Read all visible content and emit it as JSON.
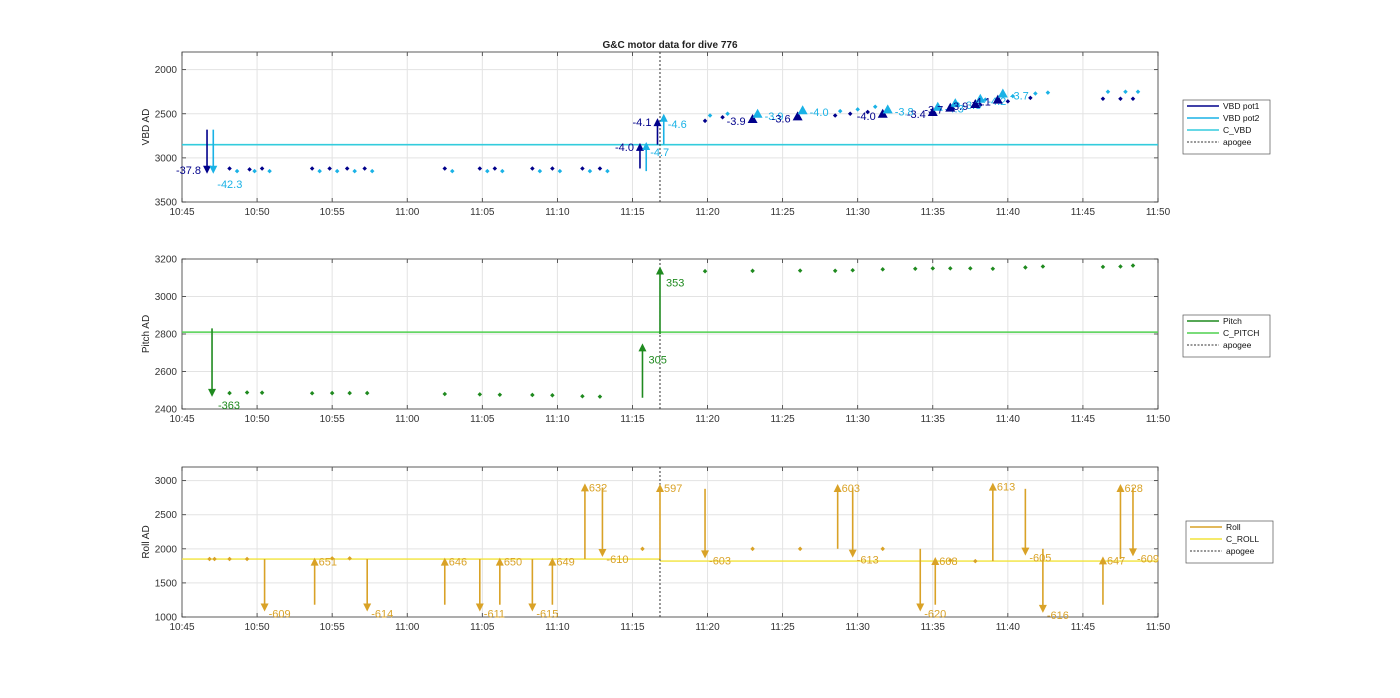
{
  "figure_title": "G&C motor data for dive 776",
  "colors": {
    "vbd_pot1": "#00008b",
    "vbd_pot2": "#1ab2e6",
    "c_vbd": "#33ccdd",
    "pitch": "#1f8a1f",
    "c_pitch": "#4fd14f",
    "roll": "#d9a227",
    "c_roll": "#f2e33a",
    "apogee": "#333333",
    "grid": "#e3e3e3",
    "axis": "#333333"
  },
  "chart_data": [
    {
      "type": "scatter",
      "id": "vbd",
      "ylabel": "VBD AD",
      "ylim": [
        3500,
        1800
      ],
      "y_reversed": true,
      "yticks": [
        2000,
        2500,
        3000,
        3500
      ],
      "xlim": [
        "10:45",
        "11:50"
      ],
      "xticks": [
        "10:45",
        "10:50",
        "10:55",
        "11:00",
        "11:05",
        "11:10",
        "11:15",
        "11:20",
        "11:25",
        "11:30",
        "11:35",
        "11:40",
        "11:45",
        "11:50"
      ],
      "grid": true,
      "legend": [
        "VBD pot1",
        "VBD pot2",
        "C_VBD",
        "apogee"
      ],
      "reference_line": 2850,
      "apogee": "11:16:50",
      "series": [
        {
          "name": "VBD pot1",
          "points": [
            [
              "10:48:10",
              3120
            ],
            [
              "10:49:30",
              3130
            ],
            [
              "10:50:20",
              3120
            ],
            [
              "10:53:40",
              3120
            ],
            [
              "10:54:50",
              3120
            ],
            [
              "10:56:00",
              3120
            ],
            [
              "10:57:10",
              3120
            ],
            [
              "11:02:30",
              3120
            ],
            [
              "11:04:50",
              3120
            ],
            [
              "11:05:50",
              3120
            ],
            [
              "11:08:20",
              3120
            ],
            [
              "11:09:40",
              3120
            ],
            [
              "11:11:40",
              3120
            ],
            [
              "11:12:50",
              3120
            ],
            [
              "11:19:50",
              2580
            ],
            [
              "11:21:00",
              2540
            ],
            [
              "11:28:30",
              2520
            ],
            [
              "11:29:30",
              2500
            ],
            [
              "11:30:40",
              2480
            ],
            [
              "11:36:20",
              2440
            ],
            [
              "11:38:10",
              2400
            ],
            [
              "11:40:00",
              2360
            ],
            [
              "11:41:30",
              2320
            ],
            [
              "11:46:20",
              2330
            ],
            [
              "11:47:30",
              2330
            ],
            [
              "11:48:20",
              2330
            ]
          ]
        },
        {
          "name": "VBD pot2",
          "points": [
            [
              "10:48:40",
              3150
            ],
            [
              "10:49:50",
              3150
            ],
            [
              "10:50:50",
              3150
            ],
            [
              "10:54:10",
              3150
            ],
            [
              "10:55:20",
              3150
            ],
            [
              "10:56:30",
              3150
            ],
            [
              "10:57:40",
              3150
            ],
            [
              "11:03:00",
              3150
            ],
            [
              "11:05:20",
              3150
            ],
            [
              "11:06:20",
              3150
            ],
            [
              "11:08:50",
              3150
            ],
            [
              "11:10:10",
              3150
            ],
            [
              "11:12:10",
              3150
            ],
            [
              "11:13:20",
              3150
            ],
            [
              "11:20:10",
              2520
            ],
            [
              "11:21:20",
              2500
            ],
            [
              "11:28:50",
              2470
            ],
            [
              "11:30:00",
              2450
            ],
            [
              "11:31:10",
              2420
            ],
            [
              "11:36:40",
              2390
            ],
            [
              "11:38:30",
              2340
            ],
            [
              "11:40:20",
              2300
            ],
            [
              "11:41:50",
              2270
            ],
            [
              "11:42:40",
              2260
            ],
            [
              "11:46:40",
              2250
            ],
            [
              "11:47:50",
              2250
            ],
            [
              "11:48:40",
              2250
            ]
          ]
        },
        {
          "name": "arrows",
          "points": []
        }
      ],
      "arrows": [
        {
          "series": "VBD pot1",
          "x": "10:46:40",
          "y_from": 2680,
          "y_to": 3180,
          "label": "-37.8",
          "label_side": "left"
        },
        {
          "series": "VBD pot2",
          "x": "10:47:05",
          "y_from": 2680,
          "y_to": 3180,
          "label": "-42.3",
          "label_side": "right-below"
        },
        {
          "series": "VBD pot1",
          "x": "11:15:30",
          "y_from": 3120,
          "y_to": 2830,
          "label": "-4.0",
          "label_side": "left"
        },
        {
          "series": "VBD pot2",
          "x": "11:15:55",
          "y_from": 3150,
          "y_to": 2820,
          "label": "-4.7",
          "label_side": "right-below"
        },
        {
          "series": "VBD pot1",
          "x": "11:16:40",
          "y_from": 2850,
          "y_to": 2550,
          "label": "-4.1",
          "label_side": "left"
        },
        {
          "series": "VBD pot2",
          "x": "11:17:05",
          "y_from": 2850,
          "y_to": 2500,
          "label": "-4.6",
          "label_side": "right-below"
        }
      ],
      "markers": [
        {
          "series": "VBD pot1",
          "x": "11:23:00",
          "y": 2560,
          "label": "-3.9"
        },
        {
          "series": "VBD pot2",
          "x": "11:23:20",
          "y": 2500,
          "label": "-3.9"
        },
        {
          "series": "VBD pot1",
          "x": "11:26:00",
          "y": 2530,
          "label": "-3.6"
        },
        {
          "series": "VBD pot2",
          "x": "11:26:20",
          "y": 2460,
          "label": "-4.0"
        },
        {
          "series": "VBD pot1",
          "x": "11:31:40",
          "y": 2500,
          "label": "-4.0"
        },
        {
          "series": "VBD pot2",
          "x": "11:32:00",
          "y": 2450,
          "label": "-3.8"
        },
        {
          "series": "VBD pot1",
          "x": "11:35:00",
          "y": 2480,
          "label": "-3.4"
        },
        {
          "series": "VBD pot2",
          "x": "11:35:20",
          "y": 2420,
          "label": "-4.3"
        },
        {
          "series": "VBD pot1",
          "x": "11:36:10",
          "y": 2430,
          "label": "-3.7"
        },
        {
          "series": "VBD pot2",
          "x": "11:36:30",
          "y": 2380,
          "label": "-3.8"
        },
        {
          "series": "VBD pot1",
          "x": "11:37:50",
          "y": 2390,
          "label": "-3.9"
        },
        {
          "series": "VBD pot2",
          "x": "11:38:10",
          "y": 2330,
          "label": "-4.2"
        },
        {
          "series": "VBD pot1",
          "x": "11:39:20",
          "y": 2340,
          "label": "-4.1"
        },
        {
          "series": "VBD pot2",
          "x": "11:39:40",
          "y": 2270,
          "label": "-3.7"
        }
      ]
    },
    {
      "type": "scatter",
      "id": "pitch",
      "ylabel": "Pitch AD",
      "ylim": [
        2400,
        3200
      ],
      "yticks": [
        2400,
        2600,
        2800,
        3000,
        3200
      ],
      "xlim": [
        "10:45",
        "11:50"
      ],
      "xticks": [
        "10:45",
        "10:50",
        "10:55",
        "11:00",
        "11:05",
        "11:10",
        "11:15",
        "11:20",
        "11:25",
        "11:30",
        "11:35",
        "11:40",
        "11:45",
        "11:50"
      ],
      "grid": true,
      "legend": [
        "Pitch",
        "C_PITCH",
        "apogee"
      ],
      "reference_line": 2810,
      "apogee": "11:16:50",
      "series": [
        {
          "name": "Pitch",
          "points": [
            [
              "10:48:10",
              2485
            ],
            [
              "10:49:20",
              2488
            ],
            [
              "10:50:20",
              2487
            ],
            [
              "10:53:40",
              2484
            ],
            [
              "10:55:00",
              2485
            ],
            [
              "10:56:10",
              2485
            ],
            [
              "10:57:20",
              2485
            ],
            [
              "11:02:30",
              2480
            ],
            [
              "11:04:50",
              2478
            ],
            [
              "11:06:10",
              2476
            ],
            [
              "11:08:20",
              2475
            ],
            [
              "11:09:40",
              2473
            ],
            [
              "11:11:40",
              2468
            ],
            [
              "11:12:50",
              2466
            ],
            [
              "11:19:50",
              3135
            ],
            [
              "11:23:00",
              3137
            ],
            [
              "11:26:10",
              3138
            ],
            [
              "11:28:30",
              3137
            ],
            [
              "11:29:40",
              3140
            ],
            [
              "11:31:40",
              3145
            ],
            [
              "11:33:50",
              3148
            ],
            [
              "11:35:00",
              3150
            ],
            [
              "11:36:10",
              3150
            ],
            [
              "11:37:30",
              3150
            ],
            [
              "11:39:00",
              3148
            ],
            [
              "11:41:10",
              3155
            ],
            [
              "11:42:20",
              3160
            ],
            [
              "11:46:20",
              3158
            ],
            [
              "11:47:30",
              3160
            ],
            [
              "11:48:20",
              3165
            ]
          ]
        }
      ],
      "arrows": [
        {
          "series": "Pitch",
          "x": "10:47:00",
          "y_from": 2830,
          "y_to": 2465,
          "label": "-363",
          "label_side": "right-below"
        },
        {
          "series": "Pitch",
          "x": "11:15:40",
          "y_from": 2460,
          "y_to": 2750,
          "label": "305",
          "label_side": "right-below"
        },
        {
          "series": "Pitch",
          "x": "11:16:50",
          "y_from": 2800,
          "y_to": 3160,
          "label": "353",
          "label_side": "right-below"
        }
      ]
    },
    {
      "type": "scatter",
      "id": "roll",
      "ylabel": "Roll AD",
      "ylim": [
        1000,
        3200
      ],
      "yticks": [
        1000,
        1500,
        2000,
        2500,
        3000
      ],
      "xlim": [
        "10:45",
        "11:50"
      ],
      "xticks": [
        "10:45",
        "10:50",
        "10:55",
        "11:00",
        "11:05",
        "11:10",
        "11:15",
        "11:20",
        "11:25",
        "11:30",
        "11:35",
        "11:40",
        "11:45",
        "11:50"
      ],
      "grid": true,
      "legend": [
        "Roll",
        "C_ROLL",
        "apogee"
      ],
      "reference_line_segments": [
        [
          "10:45",
          "11:16:50",
          1850
        ],
        [
          "11:16:50",
          "11:50",
          1820
        ]
      ],
      "apogee": "11:16:50",
      "series": [
        {
          "name": "Roll",
          "points": [
            [
              "10:46:50",
              1850
            ],
            [
              "10:47:10",
              1850
            ],
            [
              "10:48:10",
              1850
            ],
            [
              "10:49:20",
              1850
            ],
            [
              "10:55:00",
              1860
            ],
            [
              "10:56:10",
              1860
            ],
            [
              "11:15:40",
              2000
            ],
            [
              "11:23:00",
              2000
            ],
            [
              "11:26:10",
              2000
            ],
            [
              "11:31:40",
              2000
            ],
            [
              "11:36:10",
              1830
            ],
            [
              "11:37:50",
              1820
            ]
          ]
        }
      ],
      "arrows": [
        {
          "x": "10:50:30",
          "y_from": 1850,
          "y_to": 1080,
          "label": "-609"
        },
        {
          "x": "10:53:50",
          "y_from": 1180,
          "y_to": 1870,
          "label": "651"
        },
        {
          "x": "10:57:20",
          "y_from": 1850,
          "y_to": 1080,
          "label": "-614"
        },
        {
          "x": "11:02:30",
          "y_from": 1180,
          "y_to": 1870,
          "label": "646"
        },
        {
          "x": "11:04:50",
          "y_from": 1850,
          "y_to": 1080,
          "label": "-611"
        },
        {
          "x": "11:06:10",
          "y_from": 1180,
          "y_to": 1870,
          "label": "650"
        },
        {
          "x": "11:08:20",
          "y_from": 1850,
          "y_to": 1080,
          "label": "-615"
        },
        {
          "x": "11:09:40",
          "y_from": 1180,
          "y_to": 1870,
          "label": "649"
        },
        {
          "x": "11:11:50",
          "y_from": 1850,
          "y_to": 2960,
          "label": "632"
        },
        {
          "x": "11:13:00",
          "y_from": 2900,
          "y_to": 1880,
          "label": "-610"
        },
        {
          "x": "11:16:50",
          "y_from": 1850,
          "y_to": 2950,
          "label": "597"
        },
        {
          "x": "11:19:50",
          "y_from": 2880,
          "y_to": 1860,
          "label": "-603"
        },
        {
          "x": "11:28:40",
          "y_from": 2000,
          "y_to": 2950,
          "label": "603"
        },
        {
          "x": "11:29:40",
          "y_from": 2900,
          "y_to": 1870,
          "label": "-613"
        },
        {
          "x": "11:34:10",
          "y_from": 2000,
          "y_to": 1080,
          "label": "-620"
        },
        {
          "x": "11:35:10",
          "y_from": 1180,
          "y_to": 1880,
          "label": "608"
        },
        {
          "x": "11:39:00",
          "y_from": 1820,
          "y_to": 2970,
          "label": "613"
        },
        {
          "x": "11:41:10",
          "y_from": 2880,
          "y_to": 1900,
          "label": "-605"
        },
        {
          "x": "11:42:20",
          "y_from": 2000,
          "y_to": 1060,
          "label": "-616"
        },
        {
          "x": "11:46:20",
          "y_from": 1180,
          "y_to": 1890,
          "label": "647"
        },
        {
          "x": "11:47:30",
          "y_from": 1850,
          "y_to": 2950,
          "label": "628"
        },
        {
          "x": "11:48:20",
          "y_from": 2900,
          "y_to": 1890,
          "label": "-609"
        }
      ]
    }
  ]
}
